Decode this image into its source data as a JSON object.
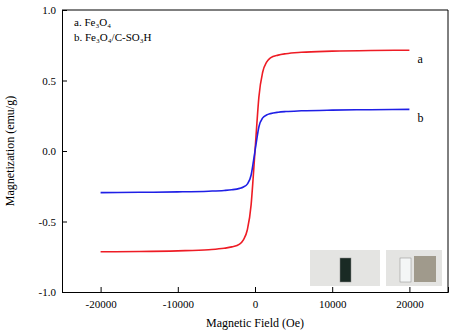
{
  "chart_data": {
    "type": "line",
    "x_label": "Magnetic Field (Oe)",
    "y_label": "Magnetization (emu/g)",
    "x": [
      -20000,
      -15000,
      -10000,
      -6000,
      -4000,
      -3000,
      -2000,
      -1500,
      -1000,
      -500,
      -250,
      0,
      250,
      500,
      1000,
      1500,
      2000,
      3000,
      4000,
      6000,
      10000,
      15000,
      20000
    ],
    "series": [
      {
        "name": "a. Fe₃O₄",
        "label": "a",
        "color": "#ee1c25",
        "values": [
          -0.715,
          -0.713,
          -0.708,
          -0.7,
          -0.69,
          -0.68,
          -0.66,
          -0.63,
          -0.56,
          -0.38,
          -0.2,
          0,
          0.2,
          0.38,
          0.56,
          0.63,
          0.66,
          0.68,
          0.69,
          0.7,
          0.708,
          0.713,
          0.715
        ]
      },
      {
        "name": "b. Fe₃O₄/C-SO₃H",
        "label": "b",
        "color": "#1f1fe6",
        "values": [
          -0.295,
          -0.293,
          -0.29,
          -0.285,
          -0.28,
          -0.275,
          -0.265,
          -0.255,
          -0.235,
          -0.17,
          -0.09,
          0,
          0.09,
          0.17,
          0.235,
          0.255,
          0.265,
          0.275,
          0.28,
          0.285,
          0.29,
          0.293,
          0.295
        ]
      }
    ],
    "xlim": [
      -25000,
      25000
    ],
    "xticks": [
      -20000,
      -10000,
      0,
      10000,
      20000
    ],
    "ylim": [
      -1,
      1
    ],
    "yticks": [
      {
        "value": -1,
        "label": "-1.0"
      },
      {
        "value": -0.5,
        "label": "-0.5"
      },
      {
        "value": 0,
        "label": "0.0"
      },
      {
        "value": 0.5,
        "label": "0.5"
      },
      {
        "value": 1,
        "label": "1.0"
      }
    ],
    "grid": false,
    "legend": "upper left"
  }
}
